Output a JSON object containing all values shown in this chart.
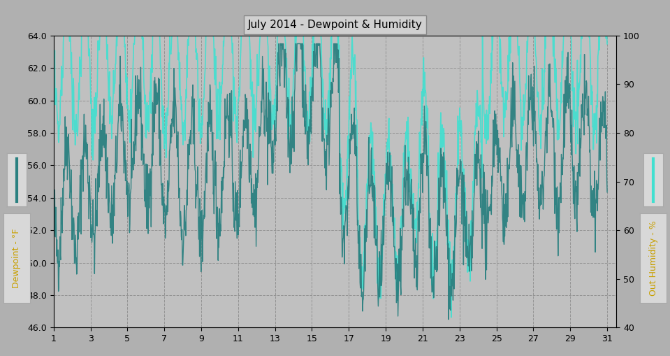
{
  "title": "July 2014 - Dewpoint & Humidity",
  "ylabel_left": "Dewpoint - °F",
  "ylabel_right": "Out Humidity - %",
  "xlabel": "",
  "ylim_left": [
    46.0,
    64.0
  ],
  "ylim_right": [
    40,
    100
  ],
  "yticks_left": [
    46.0,
    48.0,
    50.0,
    52.0,
    54.0,
    56.0,
    58.0,
    60.0,
    62.0,
    64.0
  ],
  "yticks_right": [
    40,
    50,
    60,
    70,
    80,
    90,
    100
  ],
  "xticks": [
    1,
    3,
    5,
    7,
    9,
    11,
    13,
    15,
    17,
    19,
    21,
    23,
    25,
    27,
    29,
    31
  ],
  "xlim": [
    1,
    31.5
  ],
  "bg_color": "#b0b0b0",
  "plot_bg_color": "#c0c0c0",
  "grid_color": "#888888",
  "dewpoint_color": "#2a8080",
  "humidity_color": "#40e0d0",
  "dewpoint_linewidth": 1.0,
  "humidity_linewidth": 1.2,
  "title_fontsize": 11,
  "axis_label_fontsize": 10,
  "tick_fontsize": 9
}
